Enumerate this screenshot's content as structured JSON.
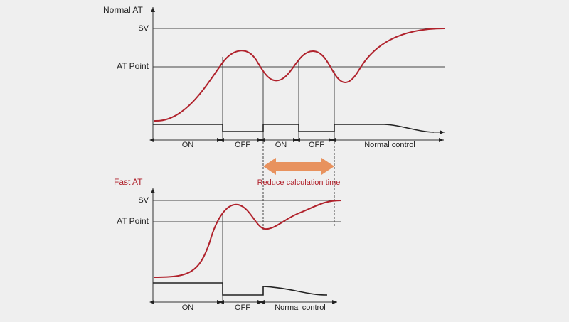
{
  "normal_at": {
    "title": "Normal AT",
    "sv": "SV",
    "at_point": "AT Point",
    "phases": [
      "ON",
      "OFF",
      "ON",
      "OFF",
      "Normal control"
    ]
  },
  "reduce_label": "Reduce calculation time",
  "fast_at": {
    "title": "Fast AT",
    "sv": "SV",
    "at_point": "AT Point",
    "phases": [
      "ON",
      "OFF",
      "Normal control"
    ]
  }
}
